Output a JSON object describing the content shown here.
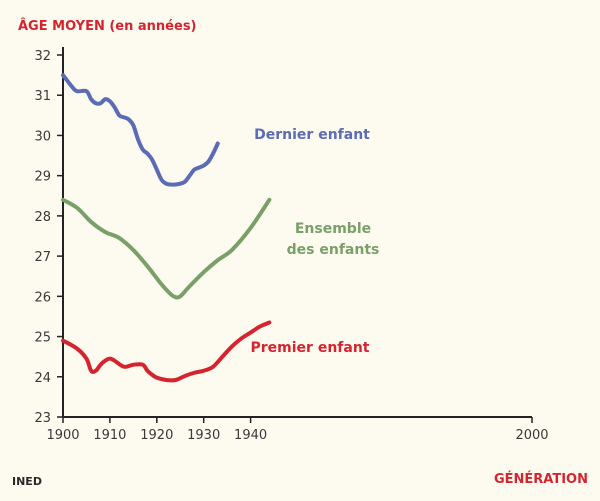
{
  "chart_data": {
    "type": "line",
    "ylabel": "ÂGE MOYEN (en années)",
    "xlabel": "GÉNÉRATION",
    "source": "INED",
    "xlim": [
      1900,
      2000
    ],
    "ylim": [
      23,
      32
    ],
    "x_ticks": [
      1900,
      1910,
      1920,
      1930,
      1940,
      2000
    ],
    "y_ticks": [
      23,
      24,
      25,
      26,
      27,
      28,
      29,
      30,
      31,
      32
    ],
    "grid": false,
    "series": [
      {
        "name": "Dernier enfant",
        "label_lines": [
          "Dernier enfant"
        ],
        "color": "#5b6bb4",
        "x": [
          1900,
          1902,
          1903,
          1905,
          1906,
          1907,
          1908,
          1909,
          1910,
          1911,
          1912,
          1913,
          1914,
          1915,
          1916,
          1917,
          1918,
          1919,
          1920,
          1921,
          1922,
          1923,
          1924,
          1925,
          1926,
          1927,
          1928,
          1929,
          1930,
          1931,
          1932,
          1933
        ],
        "y": [
          31.5,
          31.2,
          31.1,
          31.1,
          30.9,
          30.8,
          30.8,
          30.9,
          30.85,
          30.7,
          30.5,
          30.45,
          30.4,
          30.25,
          29.9,
          29.65,
          29.55,
          29.4,
          29.15,
          28.9,
          28.8,
          28.78,
          28.78,
          28.8,
          28.85,
          29.0,
          29.15,
          29.2,
          29.25,
          29.35,
          29.55,
          29.8
        ]
      },
      {
        "name": "Ensemble des enfants",
        "label_lines": [
          "Ensemble",
          "des enfants"
        ],
        "color": "#7aa06a",
        "x": [
          1900,
          1903,
          1906,
          1909,
          1912,
          1915,
          1918,
          1921,
          1923,
          1924,
          1925,
          1927,
          1930,
          1933,
          1936,
          1940,
          1944
        ],
        "y": [
          28.4,
          28.2,
          27.85,
          27.6,
          27.45,
          27.15,
          26.75,
          26.3,
          26.05,
          25.98,
          26.0,
          26.25,
          26.6,
          26.9,
          27.15,
          27.7,
          28.4
        ]
      },
      {
        "name": "Premier enfant",
        "label_lines": [
          "Premier enfant"
        ],
        "color": "#d5242f",
        "x": [
          1900,
          1903,
          1905,
          1906,
          1907,
          1908,
          1909,
          1910,
          1911,
          1913,
          1915,
          1917,
          1918,
          1919,
          1920,
          1922,
          1924,
          1926,
          1928,
          1930,
          1932,
          1934,
          1936,
          1938,
          1940,
          1942,
          1944
        ],
        "y": [
          24.9,
          24.7,
          24.45,
          24.15,
          24.15,
          24.3,
          24.4,
          24.45,
          24.4,
          24.25,
          24.3,
          24.3,
          24.15,
          24.05,
          23.98,
          23.92,
          23.92,
          24.02,
          24.1,
          24.15,
          24.25,
          24.5,
          24.75,
          24.95,
          25.1,
          25.25,
          25.35
        ]
      }
    ]
  }
}
